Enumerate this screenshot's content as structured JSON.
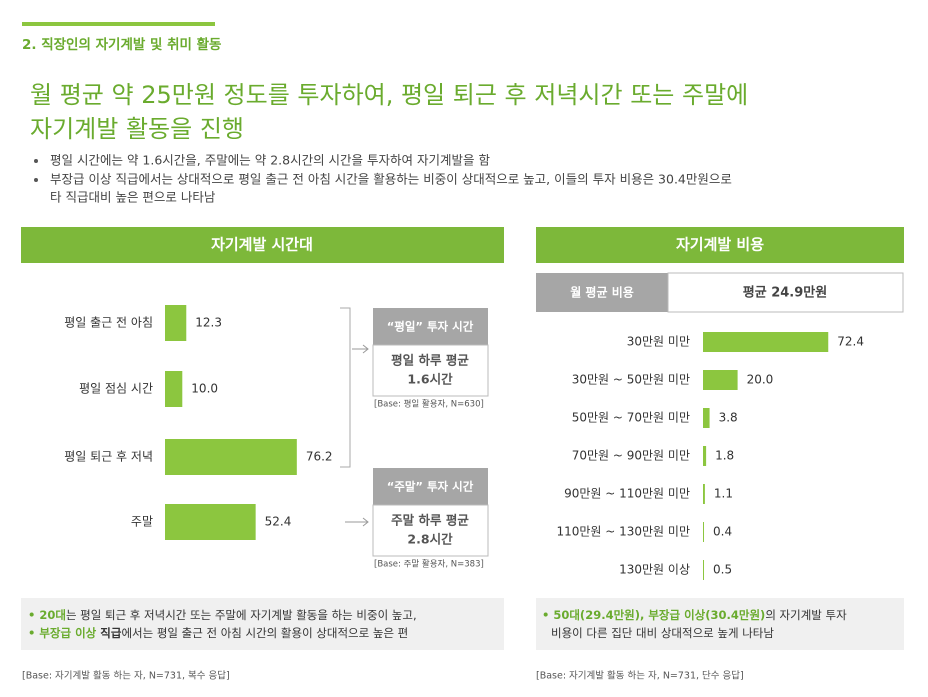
{
  "header": {
    "section": "2. 직장인의 자기계발 및 취미 활동",
    "headline": [
      "월 평균 약 25만원 정도를 투자하여, 평일 퇴근 후 저녁시간 또는 주말에",
      "자기계발 활동을 진행"
    ],
    "bullets": [
      [
        "평일 시간에는 약 1.6시간을,  주말에는 약 2.8시간의 시간을 투자하여 자기계발을 함"
      ],
      [
        "부장급 이상 직급에서는 상대적으로 평일 출근 전 아침 시간을 활용하는 비중이 상대적으로 높고, 이들의 투자 비용은 30.4만원으로",
        "타 직급대비 높은 편으로 나타남"
      ]
    ]
  },
  "chart_data": [
    {
      "type": "bar",
      "title": "자기계발 시간대",
      "categories": [
        "평일 출근 전 아침",
        "평일 점심 시간",
        "평일 퇴근 후 저녁",
        "주말"
      ],
      "values": [
        12.3,
        10.0,
        76.2,
        52.4
      ],
      "value_labels": [
        "12.3",
        "10.0",
        "76.2",
        "52.4"
      ],
      "xlim": [
        0,
        100
      ],
      "color": "#8cc63f",
      "callouts": [
        {
          "title": "“평일” 투자 시간",
          "lines": [
            "평일 하루 평균",
            "1.6시간"
          ],
          "base": "[Base: 평일 활용자, N=630]"
        },
        {
          "title": "“주말” 투자 시간",
          "lines": [
            "주말 하루 평균",
            "2.8시간"
          ],
          "base": "[Base: 주말 활용자, N=383]"
        }
      ],
      "summary": [
        [
          "• 20대",
          "는 평일 퇴근 후 저녁시간 또는 주말에 자기계발 활동을 하는 비중이 높고,"
        ],
        [
          "• 부장급 이상",
          " 직급",
          "에서는  평일 출근 전 아침 시간의 활용이 상대적으로 높은 편"
        ]
      ],
      "note": "[Base: 자기계발 활동 하는 자, N=731, 복수 응답]"
    },
    {
      "type": "bar",
      "title": "자기계발 비용",
      "table": {
        "label": "월 평균 비용",
        "value": "평균 24.9만원"
      },
      "categories": [
        "30만원 미만",
        "30만원 ~ 50만원 미만",
        "50만원 ~ 70만원 미만",
        "70만원 ~ 90만원 미만",
        "90만원 ~ 110만원 미만",
        "110만원 ~ 130만원 미만",
        "130만원 이상"
      ],
      "values": [
        72.4,
        20.0,
        3.8,
        1.8,
        1.1,
        0.4,
        0.5
      ],
      "value_labels": [
        "72.4",
        "20.0",
        "3.8",
        "1.8",
        "1.1",
        "0.4",
        "0.5"
      ],
      "xlim": [
        0,
        100
      ],
      "color": "#8cc63f",
      "summary": [
        [
          "• 50대(29.4만원), 부장급 이상(30.4만원)",
          "의 자기계발 투자"
        ],
        [
          "비용이 다른 집단 대비 상대적으로 높게 나타남"
        ]
      ],
      "note": "[Base: 자기계발 활동 하는 자, N=731, 단수 응답]"
    }
  ]
}
